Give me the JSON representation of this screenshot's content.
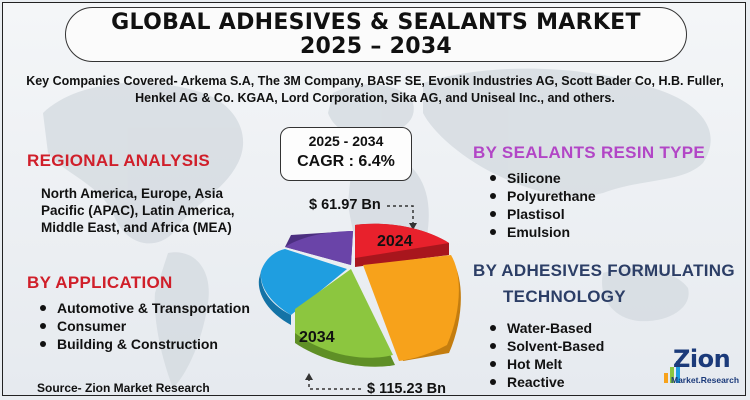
{
  "title": {
    "line1": "GLOBAL ADHESIVES & SEALANTS MARKET",
    "line2": "2025 – 2034"
  },
  "companies_text": "Key Companies Covered- Arkema S.A, The 3M Company, BASF SE, Evonik Industries AG, Scott Bader Co, H.B. Fuller, Henkel AG & Co. KGAA, Lord Corporation, Sika AG, and Uniseal Inc., and others.",
  "regional": {
    "heading": "REGIONAL ANALYSIS",
    "text": "North America, Europe, Asia Pacific (APAC), Latin America, Middle East, and Africa (MEA)"
  },
  "application": {
    "heading": "BY  APPLICATION",
    "items": [
      "Automotive & Transportation",
      "Consumer",
      "Building & Construction"
    ]
  },
  "sealants_resin": {
    "heading": "BY SEALANTS RESIN TYPE",
    "items": [
      "Silicone",
      "Polyurethane",
      "Plastisol",
      "Emulsion"
    ]
  },
  "adhesives_tech": {
    "heading_line1": "BY ADHESIVES FORMULATING",
    "heading_line2": "TECHNOLOGY",
    "items": [
      "Water-Based",
      "Solvent-Based",
      "Hot Melt",
      "Reactive"
    ]
  },
  "cagr": {
    "period": "2025 - 2034",
    "value": "CAGR : 6.4%"
  },
  "callouts": {
    "value_2024": "$ 61.97 Bn",
    "value_2034": "$ 115.23 Bn",
    "label_2024": "2024",
    "label_2034": "2034"
  },
  "colors": {
    "red_heading": "#d01f2a",
    "purple_heading": "#b246c6",
    "navy_heading": "#2c3e66",
    "slice_red": "#e8212c",
    "slice_orange": "#f7a21b",
    "slice_green": "#8cc63f",
    "slice_blue": "#1f9ee0",
    "slice_purple": "#6a44a8"
  },
  "source": "Source- Zion Market Research",
  "logo": {
    "name": "Zion",
    "sub": "Market.Research"
  }
}
